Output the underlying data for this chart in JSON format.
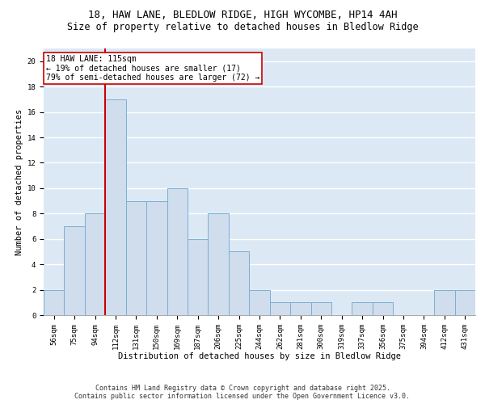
{
  "title_line1": "18, HAW LANE, BLEDLOW RIDGE, HIGH WYCOMBE, HP14 4AH",
  "title_line2": "Size of property relative to detached houses in Bledlow Ridge",
  "xlabel": "Distribution of detached houses by size in Bledlow Ridge",
  "ylabel": "Number of detached properties",
  "categories": [
    "56sqm",
    "75sqm",
    "94sqm",
    "112sqm",
    "131sqm",
    "150sqm",
    "169sqm",
    "187sqm",
    "206sqm",
    "225sqm",
    "244sqm",
    "262sqm",
    "281sqm",
    "300sqm",
    "319sqm",
    "337sqm",
    "356sqm",
    "375sqm",
    "394sqm",
    "412sqm",
    "431sqm"
  ],
  "values": [
    2,
    7,
    8,
    17,
    9,
    9,
    10,
    6,
    8,
    5,
    2,
    1,
    1,
    1,
    0,
    1,
    1,
    0,
    0,
    2,
    2
  ],
  "bar_color": "#cfdded",
  "bar_edge_color": "#7aafd4",
  "red_line_index": 3,
  "red_line_color": "#cc0000",
  "annotation_text": "18 HAW LANE: 115sqm\n← 19% of detached houses are smaller (17)\n79% of semi-detached houses are larger (72) →",
  "annotation_box_color": "white",
  "annotation_box_edge": "#cc0000",
  "ylim": [
    0,
    21
  ],
  "yticks": [
    0,
    2,
    4,
    6,
    8,
    10,
    12,
    14,
    16,
    18,
    20
  ],
  "background_color": "#dce9f5",
  "grid_color": "white",
  "footer_line1": "Contains HM Land Registry data © Crown copyright and database right 2025.",
  "footer_line2": "Contains public sector information licensed under the Open Government Licence v3.0.",
  "title_fontsize": 9,
  "subtitle_fontsize": 8.5,
  "axis_label_fontsize": 7.5,
  "tick_fontsize": 6.5,
  "annotation_fontsize": 7,
  "footer_fontsize": 6
}
